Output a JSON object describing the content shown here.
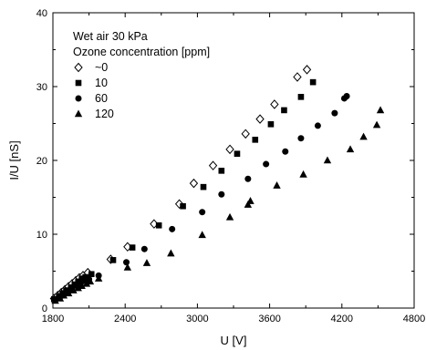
{
  "chart_data": {
    "type": "scatter",
    "xlabel": "U [V]",
    "ylabel": "I/U [nS]",
    "xlim": [
      1800,
      4800
    ],
    "ylim": [
      0,
      40
    ],
    "x_ticks": [
      1800,
      2400,
      3000,
      3600,
      4200,
      4800
    ],
    "y_ticks": [
      0,
      10,
      20,
      30,
      40
    ],
    "grid": false,
    "legend": {
      "placement": "top-left",
      "title_lines": [
        "Wet air 30 kPa",
        "Ozone concentration [ppm]"
      ]
    },
    "series": [
      {
        "name": "~0",
        "marker": "diamond-open",
        "color": "#000000",
        "points": [
          [
            1810,
            1.3
          ],
          [
            1840,
            1.7
          ],
          [
            1870,
            2.1
          ],
          [
            1900,
            2.5
          ],
          [
            1930,
            2.9
          ],
          [
            1960,
            3.3
          ],
          [
            1990,
            3.7
          ],
          [
            2020,
            4.1
          ],
          [
            2050,
            4.4
          ],
          [
            2090,
            4.8
          ],
          [
            2280,
            6.6
          ],
          [
            2420,
            8.3
          ],
          [
            2640,
            11.4
          ],
          [
            2850,
            14.1
          ],
          [
            2970,
            16.9
          ],
          [
            3130,
            19.3
          ],
          [
            3270,
            21.5
          ],
          [
            3400,
            23.6
          ],
          [
            3520,
            25.6
          ],
          [
            3640,
            27.6
          ],
          [
            3830,
            31.3
          ],
          [
            3910,
            32.3
          ]
        ]
      },
      {
        "name": "10",
        "marker": "square-filled",
        "color": "#000000",
        "points": [
          [
            1810,
            1.2
          ],
          [
            1850,
            1.6
          ],
          [
            1880,
            2.0
          ],
          [
            1910,
            2.4
          ],
          [
            1950,
            2.8
          ],
          [
            1980,
            3.2
          ],
          [
            2010,
            3.6
          ],
          [
            2040,
            4.0
          ],
          [
            2070,
            4.2
          ],
          [
            2120,
            4.6
          ],
          [
            2300,
            6.5
          ],
          [
            2460,
            8.2
          ],
          [
            2680,
            11.2
          ],
          [
            2880,
            13.8
          ],
          [
            3050,
            16.4
          ],
          [
            3200,
            18.6
          ],
          [
            3330,
            20.9
          ],
          [
            3480,
            22.8
          ],
          [
            3610,
            24.9
          ],
          [
            3720,
            26.8
          ],
          [
            3860,
            28.6
          ],
          [
            3960,
            30.6
          ]
        ]
      },
      {
        "name": "60",
        "marker": "circle-filled",
        "color": "#000000",
        "points": [
          [
            1820,
            1.1
          ],
          [
            1860,
            1.5
          ],
          [
            1890,
            1.9
          ],
          [
            1930,
            2.3
          ],
          [
            1960,
            2.7
          ],
          [
            2000,
            3.0
          ],
          [
            2030,
            3.3
          ],
          [
            2060,
            3.7
          ],
          [
            2100,
            3.9
          ],
          [
            2180,
            4.4
          ],
          [
            2410,
            6.2
          ],
          [
            2560,
            8.0
          ],
          [
            2790,
            10.7
          ],
          [
            3040,
            13.0
          ],
          [
            3200,
            15.4
          ],
          [
            3420,
            17.5
          ],
          [
            3570,
            19.5
          ],
          [
            3730,
            21.2
          ],
          [
            3860,
            23.0
          ],
          [
            4000,
            24.7
          ],
          [
            4140,
            26.4
          ],
          [
            4220,
            28.4
          ],
          [
            4240,
            28.7
          ]
        ]
      },
      {
        "name": "120",
        "marker": "triangle-filled",
        "color": "#000000",
        "points": [
          [
            1820,
            1.0
          ],
          [
            1860,
            1.3
          ],
          [
            1890,
            1.7
          ],
          [
            1930,
            2.0
          ],
          [
            1970,
            2.4
          ],
          [
            2010,
            2.7
          ],
          [
            2040,
            3.0
          ],
          [
            2080,
            3.3
          ],
          [
            2110,
            3.6
          ],
          [
            2180,
            4.0
          ],
          [
            2420,
            5.5
          ],
          [
            2580,
            6.1
          ],
          [
            2780,
            7.4
          ],
          [
            3040,
            9.9
          ],
          [
            3270,
            12.3
          ],
          [
            3420,
            14.0
          ],
          [
            3440,
            14.5
          ],
          [
            3660,
            16.6
          ],
          [
            3880,
            18.1
          ],
          [
            4080,
            20.0
          ],
          [
            4270,
            21.5
          ],
          [
            4380,
            23.2
          ],
          [
            4490,
            24.8
          ],
          [
            4520,
            26.8
          ]
        ]
      }
    ]
  }
}
